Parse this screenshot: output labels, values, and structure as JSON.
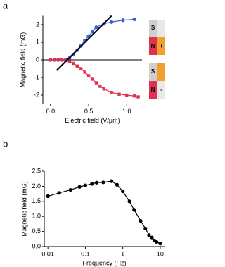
{
  "chart_data": [
    {
      "type": "line",
      "panel_label": "a",
      "y_label": "Magnetic field (mG)",
      "x_label": "Electric field (V/μm)",
      "xlim": [
        -0.1,
        1.2
      ],
      "xticks": [
        {
          "value": 0,
          "label": "0.0"
        },
        0.5,
        {
          "value": 1,
          "label": "1.0"
        }
      ],
      "ylim": [
        -2.5,
        2.5
      ],
      "yticks": [
        -2,
        -1,
        0,
        1,
        2
      ],
      "series": [
        {
          "color": "#3b5bdb",
          "marker": "circle",
          "x": [
            0,
            0.05,
            0.1,
            0.15,
            0.2,
            0.25,
            0.3,
            0.35,
            0.4,
            0.45,
            0.5,
            0.55,
            0.6,
            0.7,
            0.8,
            0.95,
            1.1
          ],
          "values": [
            0,
            0,
            0,
            0,
            0.02,
            0.1,
            0.3,
            0.55,
            0.8,
            1.1,
            1.35,
            1.6,
            1.85,
            2.05,
            2.15,
            2.25,
            2.3
          ]
        },
        {
          "color": "#e03150",
          "marker": "square",
          "x": [
            0,
            0.05,
            0.1,
            0.15,
            0.2,
            0.25,
            0.3,
            0.35,
            0.4,
            0.45,
            0.5,
            0.55,
            0.6,
            0.65,
            0.7,
            0.8,
            0.9,
            1.0,
            1.1,
            1.15
          ],
          "values": [
            0,
            0,
            0,
            0,
            -0.03,
            -0.1,
            -0.2,
            -0.35,
            -0.5,
            -0.7,
            -0.9,
            -1.1,
            -1.3,
            -1.5,
            -1.65,
            -1.85,
            -1.95,
            -2.0,
            -2.05,
            -2.1
          ]
        },
        {
          "color": "#000000",
          "marker": "none",
          "x": [
            0.08,
            0.8
          ],
          "values": [
            -0.6,
            2.5
          ]
        }
      ],
      "annotations": [
        "S",
        "N",
        "+",
        "S",
        "N",
        "-"
      ]
    },
    {
      "type": "line",
      "panel_label": "b",
      "y_label": "Magnetic field (mG)",
      "x_label": "Frequency (Hz)",
      "log_x": true,
      "xlim": [
        0.008,
        13
      ],
      "xticks": [
        0.01,
        0.1,
        1,
        10
      ],
      "ylim": [
        0,
        2.5
      ],
      "yticks": [
        {
          "value": 0,
          "label": "0.0"
        },
        0.5,
        {
          "value": 1,
          "label": "1.0"
        },
        1.5,
        {
          "value": 2,
          "label": "2.0"
        },
        2.5
      ],
      "series": [
        {
          "color": "#000000",
          "marker": "circle",
          "x": [
            0.01,
            0.02,
            0.04,
            0.07,
            0.1,
            0.15,
            0.2,
            0.3,
            0.5,
            0.7,
            1,
            1.5,
            2,
            3,
            4,
            5,
            6,
            7,
            8,
            10
          ],
          "values": [
            1.67,
            1.78,
            1.88,
            1.98,
            2.03,
            2.08,
            2.12,
            2.13,
            2.17,
            2.05,
            1.83,
            1.5,
            1.22,
            0.85,
            0.6,
            0.38,
            0.3,
            0.2,
            0.15,
            0.1
          ]
        }
      ]
    }
  ]
}
